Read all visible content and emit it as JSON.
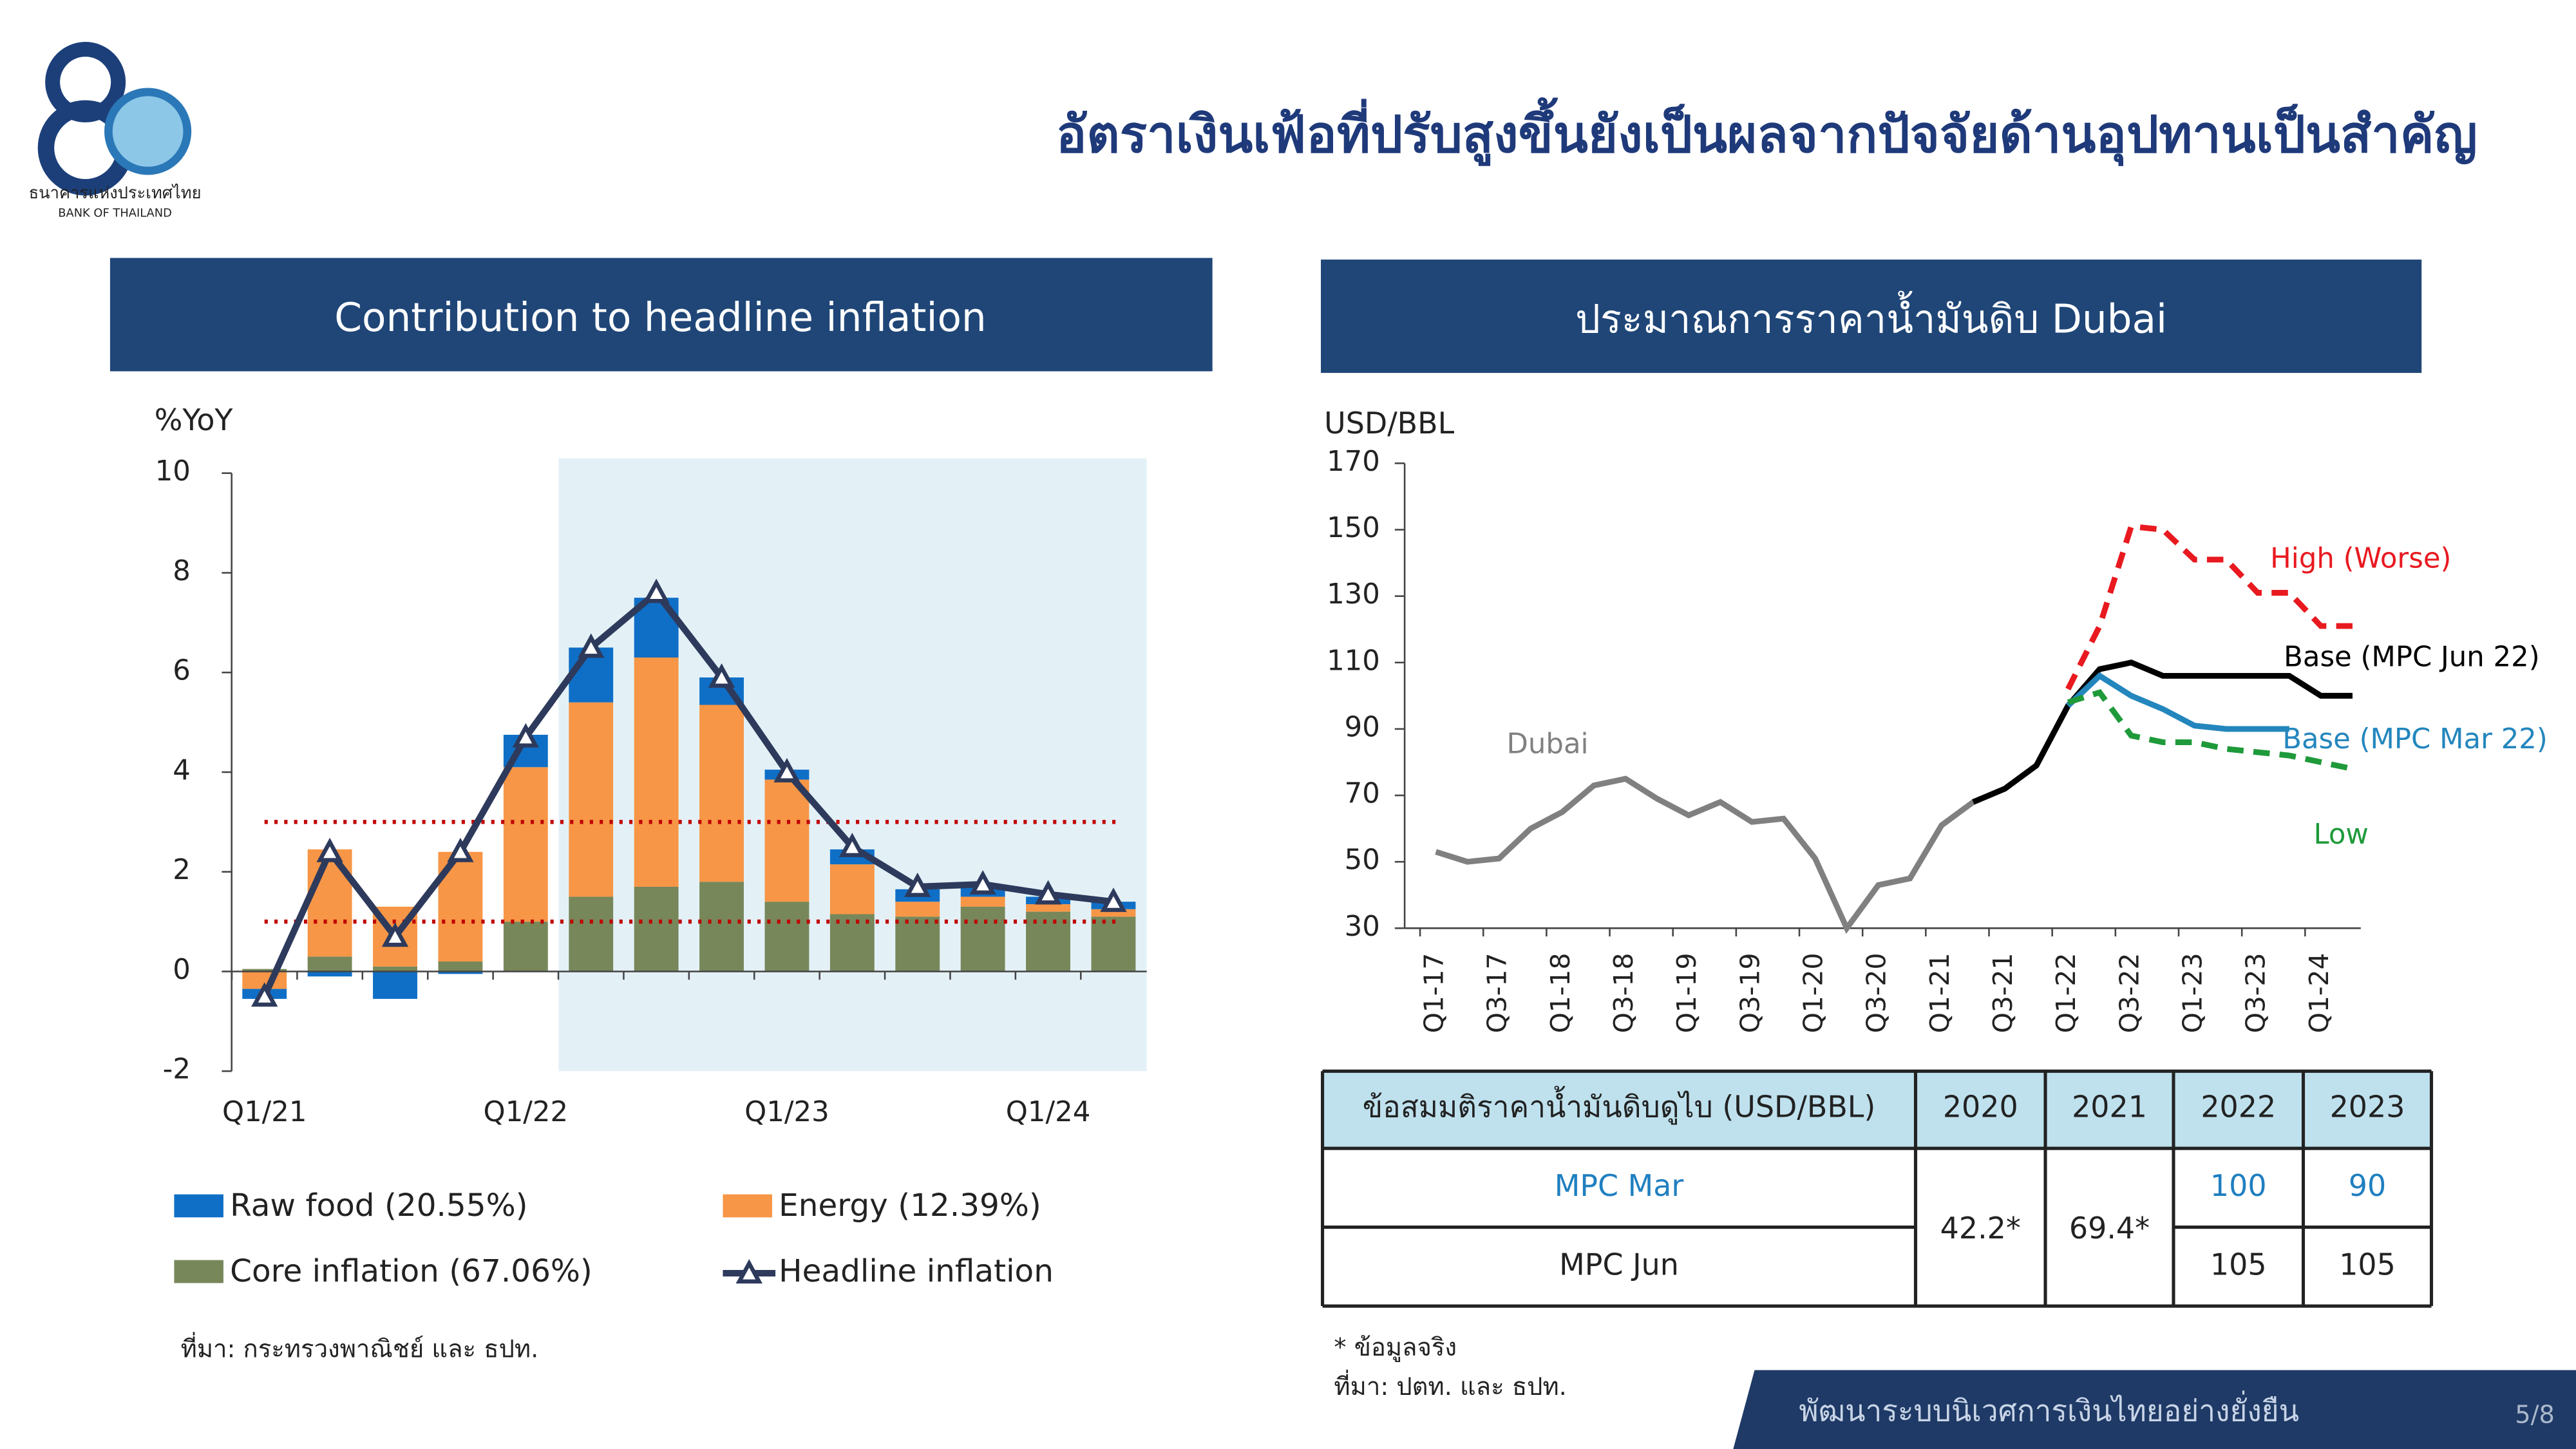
{
  "header": {
    "title": "อัตราเงินเฟ้อที่ปรับสูงขึ้นยังเป็นผลจากปัจจัยด้านอุปทานเป็นสำคัญ",
    "logo_th": "ธนาคารแห่งประเทศไทย",
    "logo_en": "BANK OF THAILAND"
  },
  "chart_data": [
    {
      "type": "bar",
      "stacked": true,
      "title": "Contribution to headline inflation",
      "y_label": "%YoY",
      "categories": [
        "Q1/21",
        null,
        null,
        null,
        "Q1/22",
        null,
        null,
        null,
        "Q1/23",
        null,
        null,
        null,
        "Q1/24",
        null
      ],
      "series": [
        {
          "name": "Raw food (20.55%)",
          "color": "#0f6fc6",
          "values": [
            -0.2,
            -0.1,
            -0.55,
            -0.05,
            0.65,
            1.1,
            1.2,
            0.55,
            0.2,
            0.3,
            0.25,
            0.2,
            0.15,
            0.15
          ]
        },
        {
          "name": "Energy (12.39%)",
          "color": "#f79646",
          "values": [
            -0.35,
            2.15,
            1.2,
            2.2,
            3.1,
            3.9,
            4.6,
            3.55,
            2.45,
            1.0,
            0.3,
            0.2,
            0.15,
            0.15
          ]
        },
        {
          "name": "Core inflation (67.06%)",
          "color": "#77875a",
          "values": [
            0.05,
            0.3,
            0.1,
            0.2,
            1.0,
            1.5,
            1.7,
            1.8,
            1.4,
            1.15,
            1.1,
            1.3,
            1.2,
            1.1
          ]
        },
        {
          "name": "Headline inflation",
          "type": "line",
          "color": "#2e3a5c",
          "values": [
            -0.5,
            2.4,
            0.7,
            2.4,
            4.7,
            6.5,
            7.6,
            5.9,
            4.0,
            2.5,
            1.7,
            1.75,
            1.55,
            1.4
          ]
        }
      ],
      "reference_lines": [
        3,
        1
      ],
      "reference_color": "#c00000",
      "ylim": [
        -2,
        10
      ],
      "yticks": [
        -2,
        0,
        2,
        4,
        6,
        8,
        10
      ],
      "source": "ที่มา: กระทรวงพาณิชย์ และ ธปท."
    },
    {
      "type": "line",
      "title": "ประมาณการราคาน้ำมันดิบ Dubai",
      "y_label": "USD/BBL",
      "categories": [
        "Q1-17",
        null,
        "Q3-17",
        null,
        "Q1-18",
        null,
        "Q3-18",
        null,
        "Q1-19",
        null,
        "Q3-19",
        null,
        "Q1-20",
        null,
        "Q3-20",
        null,
        "Q1-21",
        null,
        "Q3-21",
        null,
        "Q1-22",
        null,
        "Q3-22",
        null,
        "Q1-23",
        null,
        "Q3-23",
        null,
        "Q1-24",
        null
      ],
      "series": [
        {
          "name": "Dubai",
          "color": "#808080",
          "values": [
            53,
            50,
            51,
            60,
            65,
            73,
            75,
            69,
            64,
            68,
            62,
            63,
            51,
            30,
            43,
            45,
            61,
            68,
            72,
            79,
            97,
            null,
            null,
            null,
            null,
            null,
            null,
            null,
            null,
            null
          ]
        },
        {
          "name": "High (Worse)",
          "color": "#e8191f",
          "dash": true,
          "values": [
            null,
            null,
            null,
            null,
            null,
            null,
            null,
            null,
            null,
            null,
            null,
            null,
            null,
            null,
            null,
            null,
            null,
            null,
            null,
            null,
            102,
            121,
            151,
            150,
            141,
            141,
            131,
            131,
            121,
            121
          ]
        },
        {
          "name": "Base (MPC Jun 22)",
          "color": "#000000",
          "values": [
            null,
            null,
            null,
            null,
            null,
            null,
            null,
            null,
            null,
            null,
            null,
            null,
            null,
            null,
            null,
            null,
            null,
            68,
            72,
            79,
            97,
            108,
            110,
            106,
            106,
            106,
            106,
            106,
            100,
            100
          ]
        },
        {
          "name": "Base (MPC Mar 22)",
          "color": "#2386bd",
          "values": [
            null,
            null,
            null,
            null,
            null,
            null,
            null,
            null,
            null,
            null,
            null,
            null,
            null,
            null,
            null,
            null,
            null,
            null,
            null,
            null,
            97,
            106,
            100,
            96,
            91,
            90,
            90,
            90,
            null,
            null
          ]
        },
        {
          "name": "Low",
          "color": "#1f9a3a",
          "dash": true,
          "values": [
            null,
            null,
            null,
            null,
            null,
            null,
            null,
            null,
            null,
            null,
            null,
            null,
            null,
            null,
            null,
            null,
            null,
            null,
            null,
            null,
            98,
            101,
            88,
            86,
            86,
            84,
            83,
            82,
            80,
            78
          ]
        }
      ],
      "ylim": [
        30,
        170
      ],
      "yticks": [
        30,
        50,
        70,
        90,
        110,
        130,
        150,
        170
      ]
    }
  ],
  "table": {
    "header": [
      "ข้อสมมติราคาน้ำมันดิบดูไบ (USD/BBL)",
      "2020",
      "2021",
      "2022",
      "2023"
    ],
    "merged": [
      "42.2*",
      "69.4*"
    ],
    "rows": [
      [
        "MPC Mar",
        100,
        90
      ],
      [
        "MPC Jun",
        105,
        105
      ]
    ]
  },
  "notes": [
    "* ข้อมูลจริง",
    "ที่มา: ปตท. และ ธปท."
  ],
  "footer": {
    "text": "พัฒนาระบบนิเวศการเงินไทยอย่างยั่งยืน",
    "page": "5/8"
  }
}
